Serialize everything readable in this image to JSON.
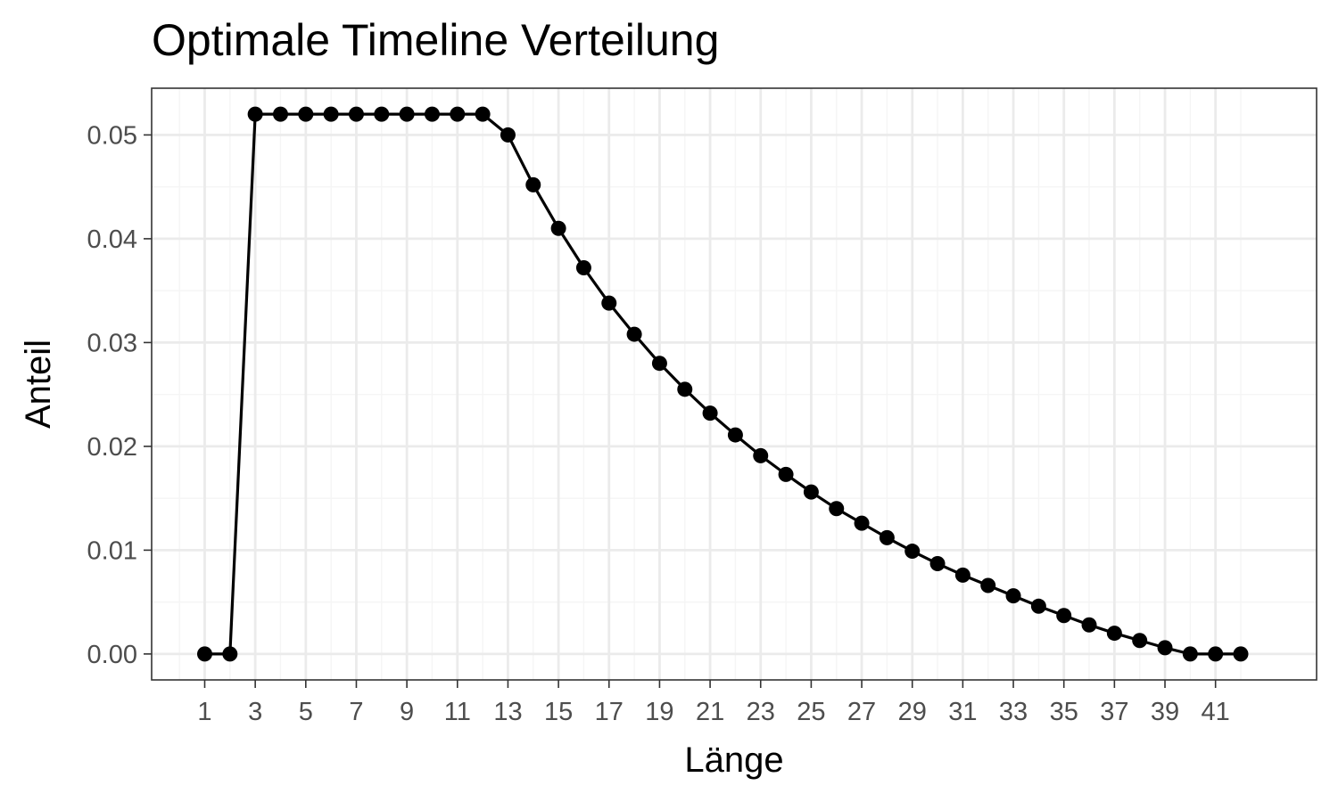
{
  "chart_data": {
    "type": "line",
    "title": "Optimale Timeline Verteilung",
    "xlabel": "Länge",
    "ylabel": "Anteil",
    "x": [
      1,
      2,
      3,
      4,
      5,
      6,
      7,
      8,
      9,
      10,
      11,
      12,
      13,
      14,
      15,
      16,
      17,
      18,
      19,
      20,
      21,
      22,
      23,
      24,
      25,
      26,
      27,
      28,
      29,
      30,
      31,
      32,
      33,
      34,
      35,
      36,
      37,
      38,
      39,
      40,
      41,
      42
    ],
    "y": [
      0.0,
      0.0,
      0.052,
      0.052,
      0.052,
      0.052,
      0.052,
      0.052,
      0.052,
      0.052,
      0.052,
      0.052,
      0.05,
      0.0452,
      0.041,
      0.0372,
      0.0338,
      0.0308,
      0.028,
      0.0255,
      0.0232,
      0.0211,
      0.0191,
      0.0173,
      0.0156,
      0.014,
      0.0126,
      0.0112,
      0.0099,
      0.0087,
      0.0076,
      0.0066,
      0.0056,
      0.0046,
      0.0037,
      0.0028,
      0.002,
      0.0013,
      0.0006,
      0.0,
      0.0,
      0.0
    ],
    "x_ticks": [
      "1",
      "3",
      "5",
      "7",
      "9",
      "11",
      "13",
      "15",
      "17",
      "19",
      "21",
      "23",
      "25",
      "27",
      "29",
      "31",
      "33",
      "35",
      "37",
      "39",
      "41"
    ],
    "y_ticks": [
      "0.00",
      "0.01",
      "0.02",
      "0.03",
      "0.04",
      "0.05"
    ],
    "xlim": [
      -1.1,
      45
    ],
    "ylim": [
      -0.0025,
      0.0545
    ],
    "grid": true,
    "colors": {
      "line": "#000000",
      "panel_border": "#333333",
      "grid_major": "#ebebeb",
      "grid_minor": "#f5f5f5",
      "tick_label": "#4d4d4d",
      "background": "#ffffff"
    }
  }
}
